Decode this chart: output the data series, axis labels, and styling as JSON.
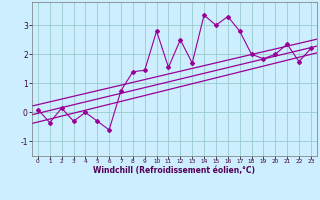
{
  "xlabel": "Windchill (Refroidissement éolien,°C)",
  "x_data": [
    0,
    1,
    2,
    3,
    4,
    5,
    6,
    7,
    8,
    9,
    10,
    11,
    12,
    13,
    14,
    15,
    16,
    17,
    18,
    19,
    20,
    21,
    22,
    23
  ],
  "y_scatter": [
    0.1,
    -0.35,
    0.15,
    -0.3,
    0.0,
    -0.3,
    -0.6,
    0.75,
    1.4,
    1.45,
    2.8,
    1.55,
    2.5,
    1.7,
    3.35,
    3.0,
    3.3,
    2.8,
    2.0,
    1.85,
    2.0,
    2.35,
    1.75,
    2.2
  ],
  "scatter_color": "#990099",
  "bg_color": "#cceeff",
  "grid_color": "#99cccc",
  "ylim": [
    -1.5,
    3.8
  ],
  "xlim": [
    -0.5,
    23.5
  ],
  "yticks": [
    -1,
    0,
    1,
    2,
    3
  ],
  "xticks": [
    0,
    1,
    2,
    3,
    4,
    5,
    6,
    7,
    8,
    9,
    10,
    11,
    12,
    13,
    14,
    15,
    16,
    17,
    18,
    19,
    20,
    21,
    22,
    23
  ],
  "reg_lines": [
    {
      "x0": -0.5,
      "y0": -0.38,
      "x1": 23.5,
      "y1": 2.05
    },
    {
      "x0": -0.5,
      "y0": -0.08,
      "x1": 23.5,
      "y1": 2.28
    },
    {
      "x0": -0.5,
      "y0": 0.22,
      "x1": 23.5,
      "y1": 2.52
    }
  ]
}
